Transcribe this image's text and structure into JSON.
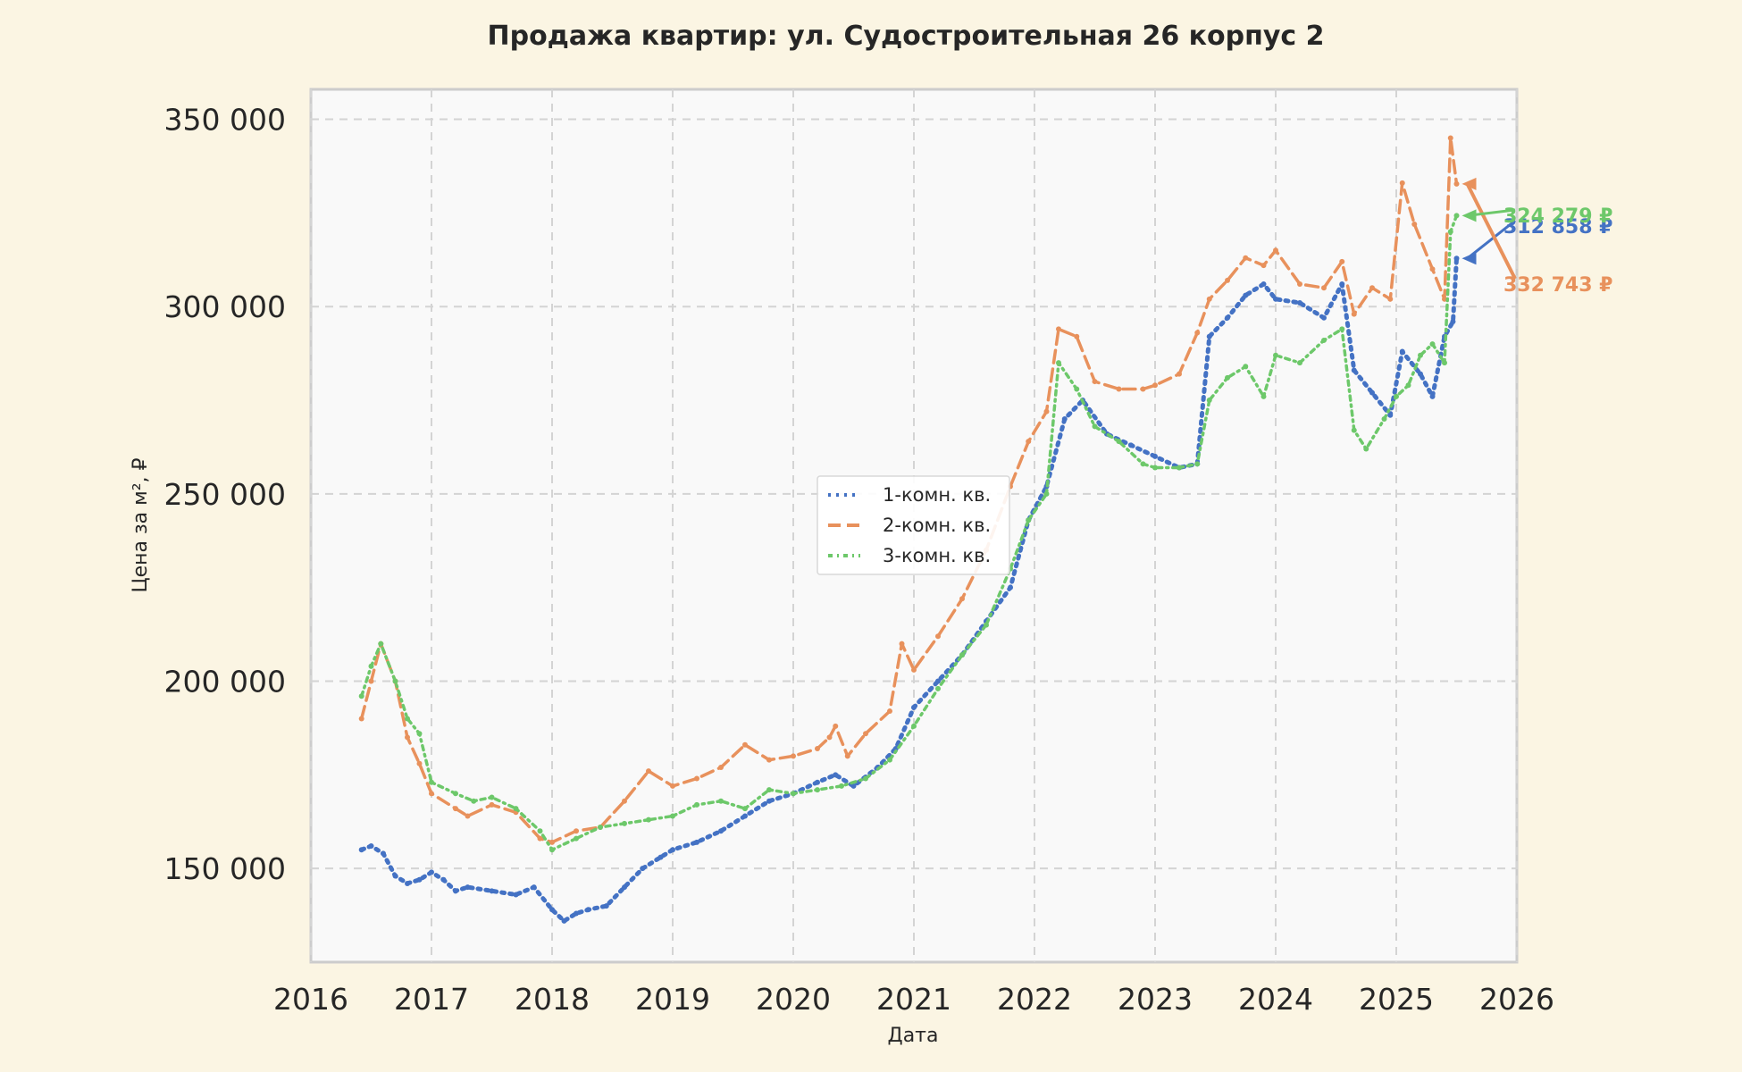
{
  "chart_data": {
    "type": "line",
    "title": "Продажа квартир: ул. Судостроительная 26 корпус 2",
    "xlabel": "Дата",
    "ylabel": "Цена за м², ₽",
    "xlim": [
      2016.0,
      2026.0
    ],
    "ylim": [
      125000,
      358000
    ],
    "x_ticks": [
      "2016",
      "2017",
      "2018",
      "2019",
      "2020",
      "2021",
      "2022",
      "2023",
      "2024",
      "2025",
      "2026"
    ],
    "y_ticks": [
      {
        "value": 150000,
        "label": "150 000"
      },
      {
        "value": 200000,
        "label": "200 000"
      },
      {
        "value": 250000,
        "label": "250 000"
      },
      {
        "value": 300000,
        "label": "300 000"
      },
      {
        "value": 350000,
        "label": "350 000"
      }
    ],
    "grid": true,
    "legend_position": "center",
    "series": [
      {
        "name": "1-комн. кв.",
        "color": "#4472c4",
        "style": "dotted",
        "last_label": "312 858 ₽",
        "x": [
          2016.42,
          2016.5,
          2016.6,
          2016.7,
          2016.8,
          2016.9,
          2017.0,
          2017.1,
          2017.2,
          2017.3,
          2017.5,
          2017.7,
          2017.85,
          2018.0,
          2018.1,
          2018.2,
          2018.3,
          2018.45,
          2018.6,
          2018.75,
          2018.9,
          2019.0,
          2019.2,
          2019.4,
          2019.6,
          2019.8,
          2020.0,
          2020.2,
          2020.35,
          2020.5,
          2020.7,
          2020.85,
          2021.0,
          2021.2,
          2021.4,
          2021.6,
          2021.8,
          2021.95,
          2022.1,
          2022.25,
          2022.4,
          2022.6,
          2022.8,
          2023.0,
          2023.2,
          2023.35,
          2023.45,
          2023.6,
          2023.75,
          2023.9,
          2024.0,
          2024.2,
          2024.4,
          2024.55,
          2024.65,
          2024.8,
          2024.95,
          2025.05,
          2025.2,
          2025.3,
          2025.4,
          2025.47,
          2025.5
        ],
        "y": [
          155000,
          156000,
          154000,
          148000,
          146000,
          147000,
          149000,
          147000,
          144000,
          145000,
          144000,
          143000,
          145000,
          139000,
          136000,
          138000,
          139000,
          140000,
          145000,
          150000,
          153000,
          155000,
          157000,
          160000,
          164000,
          168000,
          170000,
          173000,
          175000,
          172000,
          177000,
          182000,
          193000,
          200000,
          207000,
          216000,
          225000,
          243000,
          252000,
          270000,
          275000,
          266000,
          263000,
          260000,
          257000,
          258000,
          292000,
          297000,
          303000,
          306000,
          302000,
          301000,
          297000,
          306000,
          283000,
          277000,
          271000,
          288000,
          282000,
          276000,
          292000,
          296000,
          312858
        ]
      },
      {
        "name": "2-комн. кв.",
        "color": "#e8915c",
        "style": "dashed",
        "last_label": "332 743 ₽",
        "x": [
          2016.42,
          2016.5,
          2016.58,
          2016.7,
          2016.8,
          2016.9,
          2017.0,
          2017.2,
          2017.3,
          2017.5,
          2017.7,
          2017.9,
          2018.0,
          2018.2,
          2018.4,
          2018.6,
          2018.8,
          2019.0,
          2019.2,
          2019.4,
          2019.6,
          2019.8,
          2020.0,
          2020.2,
          2020.3,
          2020.35,
          2020.45,
          2020.6,
          2020.8,
          2020.9,
          2021.0,
          2021.2,
          2021.4,
          2021.6,
          2021.8,
          2021.95,
          2022.1,
          2022.2,
          2022.35,
          2022.5,
          2022.7,
          2022.9,
          2023.0,
          2023.2,
          2023.35,
          2023.45,
          2023.6,
          2023.75,
          2023.9,
          2024.0,
          2024.2,
          2024.4,
          2024.55,
          2024.65,
          2024.8,
          2024.95,
          2025.05,
          2025.15,
          2025.3,
          2025.4,
          2025.45,
          2025.5
        ],
        "y": [
          190000,
          200000,
          210000,
          200000,
          185000,
          178000,
          170000,
          166000,
          164000,
          167000,
          165000,
          158000,
          157000,
          160000,
          161000,
          168000,
          176000,
          172000,
          174000,
          177000,
          183000,
          179000,
          180000,
          182000,
          185000,
          188000,
          180000,
          186000,
          192000,
          210000,
          203000,
          212000,
          222000,
          235000,
          252000,
          264000,
          272000,
          294000,
          292000,
          280000,
          278000,
          278000,
          279000,
          282000,
          293000,
          302000,
          307000,
          313000,
          311000,
          315000,
          306000,
          305000,
          312000,
          298000,
          305000,
          302000,
          333000,
          322000,
          310000,
          302000,
          345000,
          332743
        ]
      },
      {
        "name": "3-комн. кв.",
        "color": "#6dc86a",
        "style": "dashdot",
        "last_label": "324 279 ₽",
        "x": [
          2016.42,
          2016.5,
          2016.58,
          2016.7,
          2016.8,
          2016.9,
          2017.0,
          2017.2,
          2017.35,
          2017.5,
          2017.7,
          2017.9,
          2018.0,
          2018.2,
          2018.4,
          2018.6,
          2018.8,
          2019.0,
          2019.2,
          2019.4,
          2019.6,
          2019.8,
          2020.0,
          2020.2,
          2020.4,
          2020.6,
          2020.8,
          2021.0,
          2021.2,
          2021.4,
          2021.6,
          2021.8,
          2021.95,
          2022.1,
          2022.2,
          2022.35,
          2022.5,
          2022.7,
          2022.9,
          2023.0,
          2023.2,
          2023.35,
          2023.45,
          2023.6,
          2023.75,
          2023.9,
          2024.0,
          2024.2,
          2024.4,
          2024.55,
          2024.65,
          2024.75,
          2024.9,
          2025.0,
          2025.1,
          2025.2,
          2025.3,
          2025.4,
          2025.45,
          2025.5
        ],
        "y": [
          196000,
          204000,
          210000,
          200000,
          190000,
          186000,
          173000,
          170000,
          168000,
          169000,
          166000,
          160000,
          155000,
          158000,
          161000,
          162000,
          163000,
          164000,
          167000,
          168000,
          166000,
          171000,
          170000,
          171000,
          172000,
          174000,
          179000,
          188000,
          198000,
          207000,
          215000,
          230000,
          243000,
          250000,
          285000,
          278000,
          268000,
          264000,
          258000,
          257000,
          257000,
          258000,
          275000,
          281000,
          284000,
          276000,
          287000,
          285000,
          291000,
          294000,
          267000,
          262000,
          270000,
          276000,
          279000,
          287000,
          290000,
          285000,
          320000,
          324279
        ]
      }
    ]
  }
}
